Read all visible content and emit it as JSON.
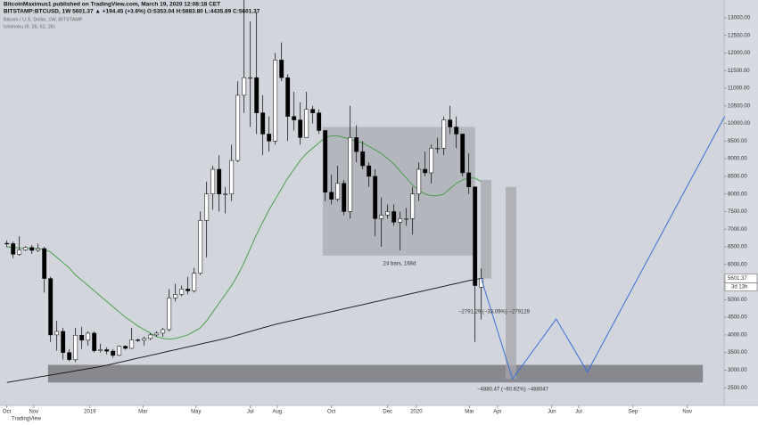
{
  "chart_data": {
    "type": "candlestick",
    "publisher": "BitcoinMaximus1 published on TradingView.com, March 19, 2020 12:08:18 CET",
    "symbol_line": "BITSTAMP:BTCUSD, 1W 5601.37 ▲ +194.45 (+3.6%) O:5353.04 H:5883.80 L:4435.89 C:5601.37",
    "title": "Bitcoin / U.S. Dollar, 1W, BITSTAMP",
    "indicator": "Ichimoku (9, 26, 52, 26)",
    "footer": "TradingView",
    "countdown": "3d 13h",
    "up_color": "#ffffff",
    "down_color": "#000000",
    "grid": false,
    "ohlc": [
      [
        6600,
        6680,
        6490,
        6590
      ],
      [
        6590,
        6650,
        6180,
        6290
      ],
      [
        6290,
        6800,
        6250,
        6410
      ],
      [
        6410,
        6520,
        6380,
        6480
      ],
      [
        6480,
        6550,
        6300,
        6400
      ],
      [
        6400,
        6590,
        6350,
        6450
      ],
      [
        6450,
        6500,
        5200,
        5600
      ],
      [
        5600,
        5650,
        3800,
        4000
      ],
      [
        4000,
        4400,
        3550,
        4100
      ],
      [
        4100,
        4200,
        3300,
        3500
      ],
      [
        3500,
        3600,
        3250,
        3300
      ],
      [
        3300,
        4200,
        3230,
        3990
      ],
      [
        3990,
        4230,
        3600,
        3850
      ],
      [
        3850,
        4100,
        3700,
        4050
      ],
      [
        4050,
        4100,
        3500,
        3550
      ],
      [
        3550,
        3750,
        3500,
        3580
      ],
      [
        3580,
        3650,
        3450,
        3540
      ],
      [
        3540,
        3600,
        3350,
        3420
      ],
      [
        3420,
        3700,
        3400,
        3680
      ],
      [
        3680,
        3700,
        3580,
        3620
      ],
      [
        3620,
        4200,
        3600,
        3860
      ],
      [
        3860,
        3900,
        3800,
        3850
      ],
      [
        3850,
        3950,
        3700,
        3900
      ],
      [
        3900,
        4050,
        3850,
        4000
      ],
      [
        4000,
        4100,
        3950,
        4050
      ],
      [
        4050,
        4200,
        3950,
        4150
      ],
      [
        4150,
        5300,
        4100,
        5050
      ],
      [
        5050,
        5450,
        4950,
        5150
      ],
      [
        5150,
        5400,
        5100,
        5300
      ],
      [
        5300,
        5650,
        5150,
        5250
      ],
      [
        5250,
        5900,
        5200,
        5750
      ],
      [
        5750,
        7500,
        5700,
        7250
      ],
      [
        7250,
        8350,
        6200,
        8000
      ],
      [
        8000,
        8800,
        7550,
        8700
      ],
      [
        8700,
        9100,
        7500,
        8000
      ],
      [
        8000,
        8200,
        7450,
        8000
      ],
      [
        8000,
        9400,
        7800,
        8950
      ],
      [
        8950,
        11200,
        8900,
        10800
      ],
      [
        10800,
        13800,
        10300,
        11300
      ],
      [
        11300,
        12900,
        9900,
        11300
      ],
      [
        11300,
        13150,
        9700,
        10300
      ],
      [
        10300,
        10800,
        9100,
        9700
      ],
      [
        9700,
        10200,
        9200,
        9500
      ],
      [
        9500,
        12000,
        9400,
        11800
      ],
      [
        11800,
        12300,
        11200,
        11300
      ],
      [
        11300,
        11400,
        9500,
        10200
      ],
      [
        10200,
        10900,
        9800,
        10100
      ],
      [
        10100,
        10600,
        9400,
        9600
      ],
      [
        9600,
        10900,
        9600,
        10400
      ],
      [
        10400,
        10500,
        10000,
        10300
      ],
      [
        10300,
        10400,
        9700,
        9800
      ],
      [
        9800,
        9800,
        7800,
        8050
      ],
      [
        8050,
        8550,
        7700,
        7850
      ],
      [
        7850,
        8800,
        7800,
        8300
      ],
      [
        8300,
        8400,
        7400,
        7500
      ],
      [
        7500,
        10500,
        7300,
        9600
      ],
      [
        9600,
        9950,
        8900,
        9200
      ],
      [
        9200,
        9500,
        8700,
        8800
      ],
      [
        8800,
        8900,
        8200,
        8500
      ],
      [
        8500,
        8700,
        6800,
        7300
      ],
      [
        7300,
        7900,
        6500,
        7400
      ],
      [
        7400,
        7700,
        7300,
        7500
      ],
      [
        7500,
        7700,
        7100,
        7200
      ],
      [
        7200,
        7500,
        6400,
        7300
      ],
      [
        7300,
        7600,
        7100,
        7300
      ],
      [
        7300,
        8200,
        6850,
        8000
      ],
      [
        8000,
        8900,
        7800,
        8700
      ],
      [
        8700,
        9200,
        8500,
        8600
      ],
      [
        8600,
        9400,
        8300,
        9300
      ],
      [
        9300,
        9600,
        9150,
        9300
      ],
      [
        9300,
        10200,
        9100,
        10100
      ],
      [
        10100,
        10500,
        9700,
        9900
      ],
      [
        9900,
        10200,
        9300,
        9700
      ],
      [
        9700,
        9700,
        8500,
        8600
      ],
      [
        8600,
        9150,
        8000,
        8200
      ],
      [
        8200,
        8200,
        3800,
        5400
      ],
      [
        5353.04,
        5883.8,
        4435.89,
        5601.37
      ]
    ],
    "lines": [
      {
        "color": "#3f9c3f",
        "values": [
          6500,
          6480,
          6470,
          6460,
          6450,
          6450,
          6430,
          6350,
          6200,
          6050,
          5900,
          5700,
          5550,
          5400,
          5250,
          5100,
          4950,
          4800,
          4650,
          4500,
          4380,
          4250,
          4150,
          4050,
          3950,
          3900,
          3880,
          3900,
          3950,
          4000,
          4100,
          4200,
          4400,
          4650,
          4900,
          5150,
          5400,
          5700,
          6050,
          6450,
          6850,
          7200,
          7550,
          7850,
          8150,
          8450,
          8700,
          8950,
          9150,
          9300,
          9450,
          9600,
          9650,
          9650,
          9600,
          9550,
          9500,
          9450,
          9350,
          9250,
          9150,
          9000,
          8850,
          8650,
          8450,
          8250,
          8100,
          8000,
          7950,
          7950,
          8000,
          8150,
          8300,
          8400,
          8450,
          8450,
          8350
        ]
      },
      {
        "color": "#111111",
        "values": [
          2650,
          2680,
          2710,
          2740,
          2770,
          2800,
          2830,
          2860,
          2890,
          2920,
          2950,
          2980,
          3010,
          3040,
          3070,
          3100,
          3140,
          3180,
          3220,
          3260,
          3300,
          3340,
          3380,
          3420,
          3460,
          3500,
          3540,
          3580,
          3620,
          3660,
          3700,
          3740,
          3780,
          3820,
          3860,
          3900,
          3950,
          4000,
          4050,
          4100,
          4150,
          4200,
          4250,
          4300,
          4340,
          4380,
          4420,
          4460,
          4500,
          4540,
          4580,
          4620,
          4660,
          4700,
          4740,
          4780,
          4820,
          4860,
          4900,
          4940,
          4980,
          5020,
          5060,
          5100,
          5140,
          5180,
          5220,
          5260,
          5300,
          5340,
          5380,
          5420,
          5460,
          5500,
          5540,
          5570,
          5600
        ]
      }
    ],
    "projection": {
      "color": "#3a6fd8",
      "x": [
        76,
        81,
        88,
        93,
        115
      ],
      "values": [
        5600,
        2750,
        4450,
        2950,
        10200
      ]
    },
    "boxes": [
      {
        "color": "#6e6f74",
        "x": [
          6.6,
          111.5
        ],
        "range": [
          2650,
          3150
        ]
      },
      {
        "color": "#a9abb1",
        "x": [
          50.6,
          75
        ],
        "range": [
          6250,
          9900
        ]
      },
      {
        "color": "#a5a6ab",
        "x": [
          75.9,
          77.6
        ],
        "range": [
          5600,
          8400
        ]
      },
      {
        "color": "#a5a6ab",
        "x": [
          79.9,
          81.6
        ],
        "range": [
          2750,
          8200
        ]
      }
    ],
    "annotations": [
      "24 bars, 168d",
      "−2791.29 (−33.09%) −279129",
      "−4880.47 (−60.62%) −488047"
    ],
    "xlim": [
      -1.1,
      114.9
    ],
    "xticks": [
      {
        "value": 0,
        "label": "Oct"
      },
      {
        "value": 4.3,
        "label": "Nov"
      },
      {
        "value": 13.3,
        "label": "2019"
      },
      {
        "value": 21.8,
        "label": "Mar"
      },
      {
        "value": 30.3,
        "label": "May"
      },
      {
        "value": 39,
        "label": "Jul"
      },
      {
        "value": 43.3,
        "label": "Aug"
      },
      {
        "value": 52,
        "label": "Oct"
      },
      {
        "value": 61,
        "label": "Dec"
      },
      {
        "value": 65.6,
        "label": "2020"
      },
      {
        "value": 74.1,
        "label": "Mar"
      },
      {
        "value": 78.6,
        "label": "Apr"
      },
      {
        "value": 87.3,
        "label": "Jun"
      },
      {
        "value": 91.6,
        "label": "Jul"
      },
      {
        "value": 100.3,
        "label": "Sep"
      },
      {
        "value": 109,
        "label": "Nov"
      }
    ],
    "ylim": [
      2000,
      13200
    ],
    "yticks": [
      {
        "value": 2500,
        "label": "2500.00"
      },
      {
        "value": 3000,
        "label": "3000.00"
      },
      {
        "value": 3500,
        "label": "3500.00"
      },
      {
        "value": 4000,
        "label": "4000.00"
      },
      {
        "value": 4500,
        "label": "4500.00"
      },
      {
        "value": 5000,
        "label": "5000.00"
      },
      {
        "value": 5500,
        "label": "5500.00"
      },
      {
        "value": 6000,
        "label": "6000.00"
      },
      {
        "value": 6500,
        "label": "6500.00"
      },
      {
        "value": 7000,
        "label": "7000.00"
      },
      {
        "value": 7500,
        "label": "7500.00"
      },
      {
        "value": 8000,
        "label": "8000.00"
      },
      {
        "value": 8500,
        "label": "8500.00"
      },
      {
        "value": 9000,
        "label": "9000.00"
      },
      {
        "value": 9500,
        "label": "9500.00"
      },
      {
        "value": 10000,
        "label": "10000.00"
      },
      {
        "value": 10500,
        "label": "10500.00"
      },
      {
        "value": 11000,
        "label": "11000.00"
      },
      {
        "value": 11500,
        "label": "11500.00"
      },
      {
        "value": 12000,
        "label": "12000.00"
      },
      {
        "value": 12500,
        "label": "12500.00"
      },
      {
        "value": 13000,
        "label": "13000.00"
      }
    ]
  }
}
